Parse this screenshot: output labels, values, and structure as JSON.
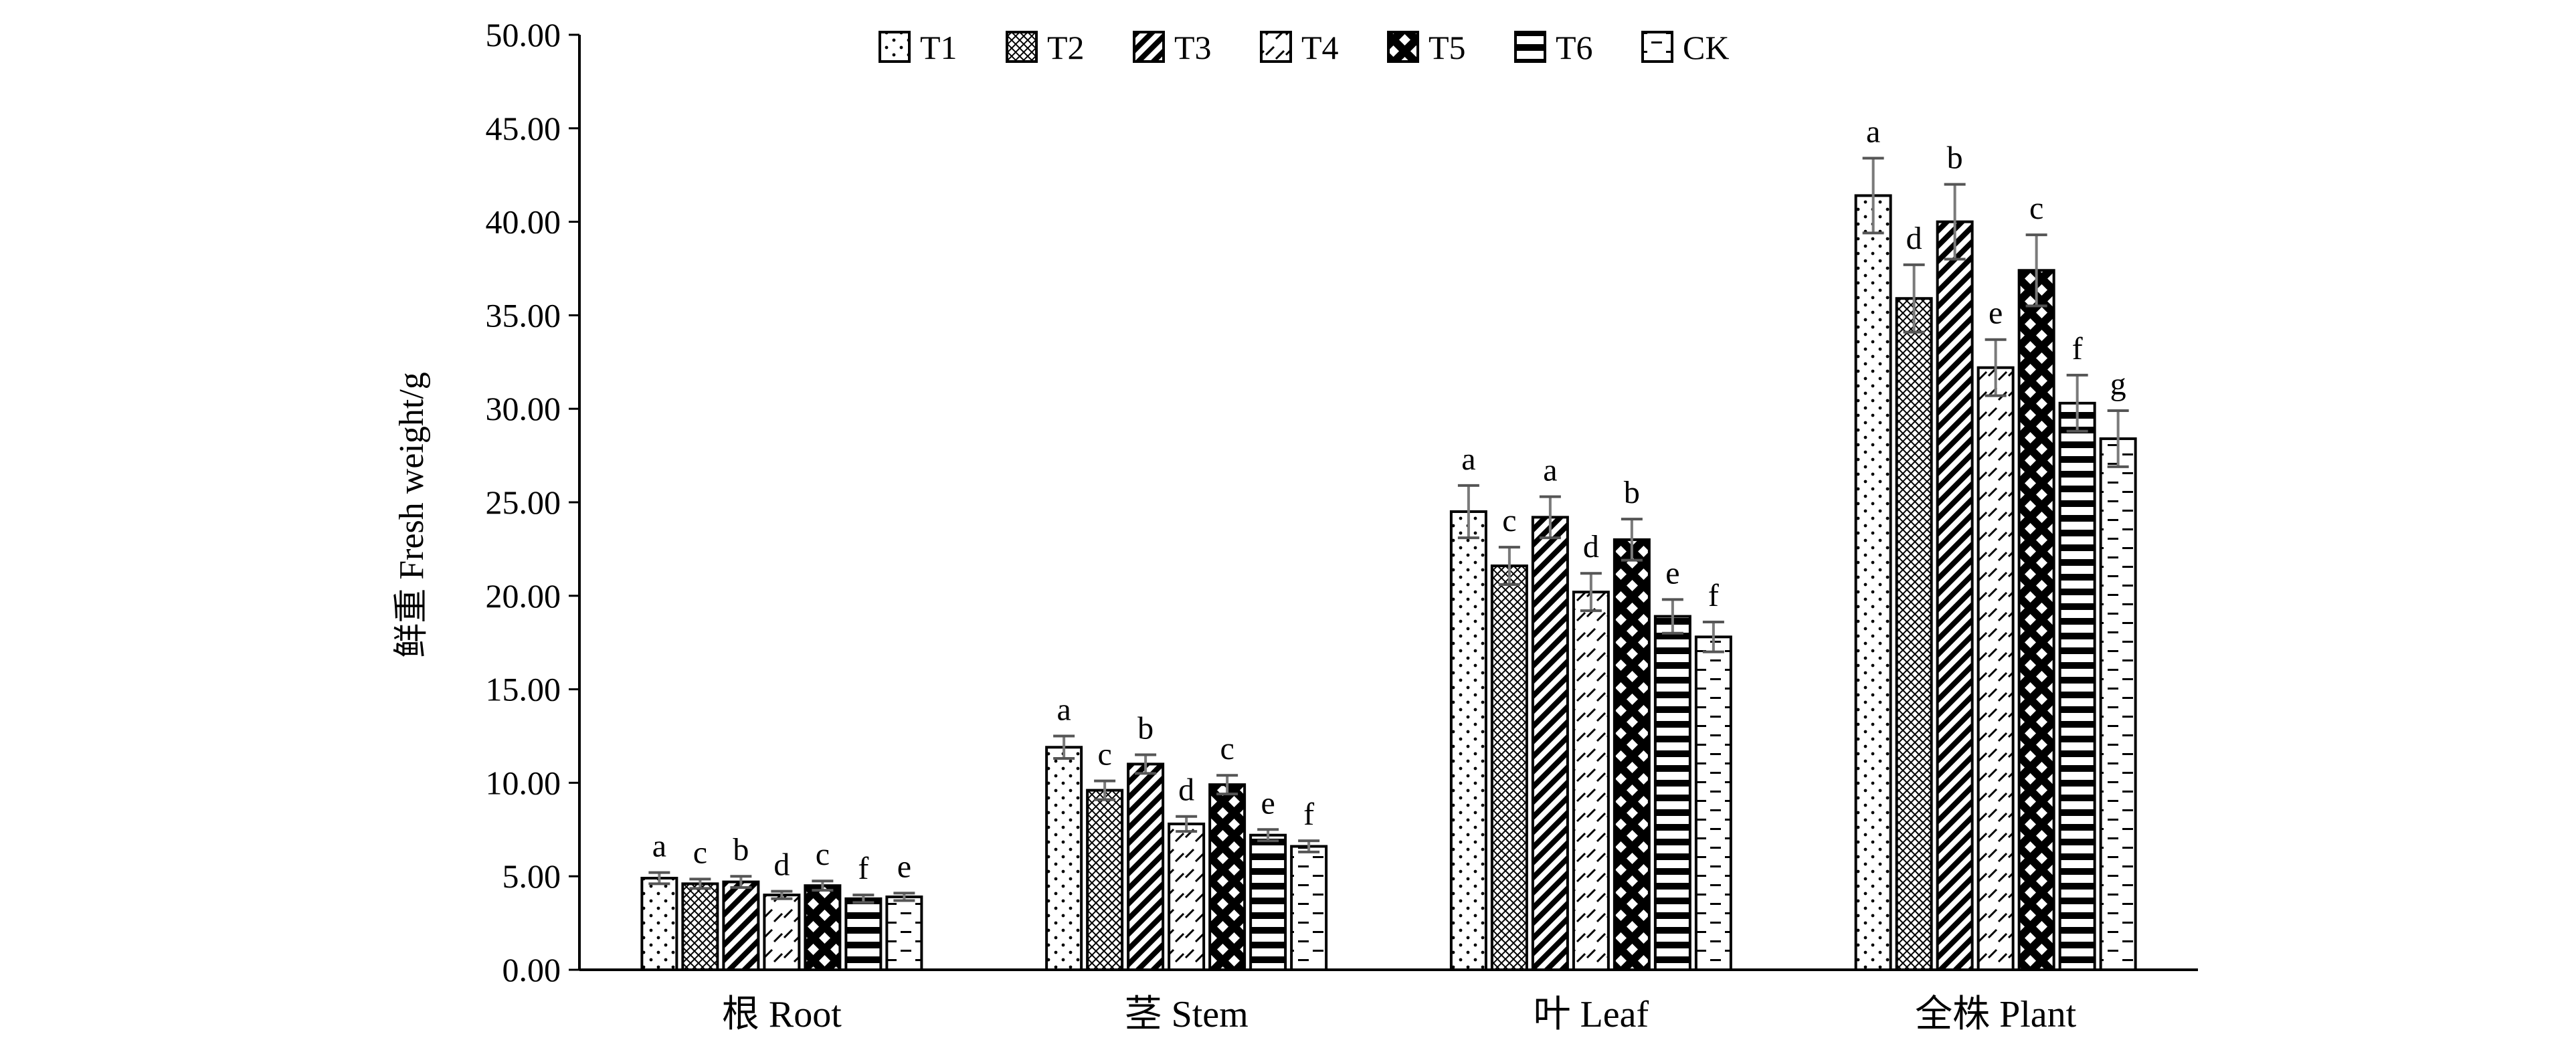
{
  "chart_data": {
    "type": "bar",
    "ylabel": "鲜重 Fresh weight/g",
    "xlabel": "",
    "ylim": [
      0,
      50
    ],
    "yticks": [
      "0.00",
      "5.00",
      "10.00",
      "15.00",
      "20.00",
      "25.00",
      "30.00",
      "35.00",
      "40.00",
      "45.00",
      "50.00"
    ],
    "categories": [
      "根 Root",
      "茎 Stem",
      "叶 Leaf",
      "全株 Plant"
    ],
    "legend_position": "top-center",
    "grid": false,
    "series": [
      {
        "name": "T1",
        "pattern": "dots",
        "values": [
          4.9,
          11.9,
          24.5,
          41.4
        ],
        "errors": [
          0.3,
          0.6,
          1.4,
          2.0
        ],
        "labels": [
          "a",
          "a",
          "a",
          "a"
        ]
      },
      {
        "name": "T2",
        "pattern": "crosshatch",
        "values": [
          4.6,
          9.6,
          21.6,
          35.9
        ],
        "errors": [
          0.25,
          0.5,
          1.0,
          1.8
        ],
        "labels": [
          "c",
          "c",
          "c",
          "d"
        ]
      },
      {
        "name": "T3",
        "pattern": "dense-diagonal",
        "values": [
          4.7,
          11.0,
          24.2,
          40.0
        ],
        "errors": [
          0.3,
          0.5,
          1.1,
          2.0
        ],
        "labels": [
          "b",
          "b",
          "a",
          "b"
        ]
      },
      {
        "name": "T4",
        "pattern": "dashed-diagonal",
        "values": [
          4.0,
          7.8,
          20.2,
          32.2
        ],
        "errors": [
          0.2,
          0.4,
          1.0,
          1.5
        ],
        "labels": [
          "d",
          "d",
          "d",
          "e"
        ]
      },
      {
        "name": "T5",
        "pattern": "black-diamonds",
        "values": [
          4.5,
          9.9,
          23.0,
          37.4
        ],
        "errors": [
          0.25,
          0.5,
          1.1,
          1.9
        ],
        "labels": [
          "c",
          "c",
          "b",
          "c"
        ]
      },
      {
        "name": "T6",
        "pattern": "horizontal-stripes",
        "values": [
          3.8,
          7.2,
          18.9,
          30.3
        ],
        "errors": [
          0.2,
          0.3,
          0.9,
          1.5
        ],
        "labels": [
          "f",
          "e",
          "e",
          "f"
        ]
      },
      {
        "name": "CK",
        "pattern": "horizontal-dashes",
        "values": [
          3.9,
          6.6,
          17.8,
          28.4
        ],
        "errors": [
          0.2,
          0.3,
          0.8,
          1.5
        ],
        "labels": [
          "e",
          "f",
          "f",
          "g"
        ]
      }
    ]
  }
}
